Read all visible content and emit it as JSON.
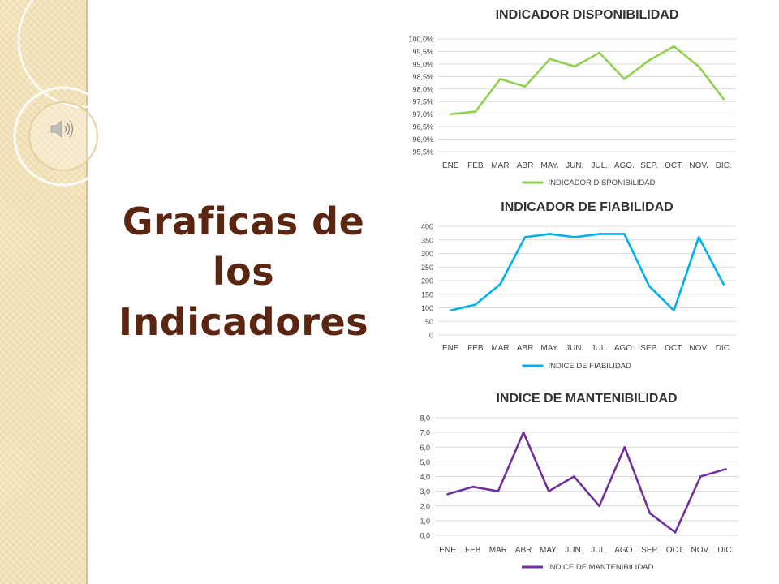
{
  "slide": {
    "title_lines": [
      "Graficas de",
      "los",
      "Indicadores"
    ],
    "colors": {
      "title": "#5a2612",
      "strip": "#f3e2b8"
    }
  },
  "icons": {
    "speaker": "speaker-icon"
  },
  "chart_data": [
    {
      "type": "line",
      "title": "INDICADOR DISPONIBILIDAD",
      "categories": [
        "ENE",
        "FEB",
        "MAR",
        "ABR",
        "MAY.",
        "JUN.",
        "JUL.",
        "AGO.",
        "SEP.",
        "OCT.",
        "NOV.",
        "DIC."
      ],
      "series": [
        {
          "name": "INDICADOR DISPONIBILIDAD",
          "color": "#92d050",
          "values": [
            97.0,
            97.1,
            98.4,
            98.1,
            99.2,
            98.9,
            99.45,
            98.4,
            99.15,
            99.7,
            98.9,
            97.6
          ]
        }
      ],
      "ylim": [
        95.5,
        100.0
      ],
      "yticks": [
        "95,5%",
        "96,0%",
        "96,5%",
        "97,0%",
        "97,5%",
        "98,0%",
        "98,5%",
        "99,0%",
        "99,5%",
        "100,0%"
      ],
      "legend": "bottom"
    },
    {
      "type": "line",
      "title": "INDICADOR DE FIABILIDAD",
      "categories": [
        "ENE",
        "FEB",
        "MAR",
        "ABR",
        "MAY.",
        "JUN.",
        "JUL.",
        "AGO.",
        "SEP.",
        "OCT.",
        "NOV.",
        "DIC."
      ],
      "series": [
        {
          "name": "INDICE DE FIABILIDAD",
          "color": "#00b0f0",
          "values": [
            90,
            112,
            187,
            360,
            372,
            360,
            372,
            372,
            180,
            90,
            360,
            187
          ]
        }
      ],
      "ylim": [
        0,
        400
      ],
      "yticks": [
        "0",
        "50",
        "100",
        "150",
        "200",
        "250",
        "300",
        "350",
        "400"
      ],
      "legend": "bottom"
    },
    {
      "type": "line",
      "title": "INDICE DE MANTENIBILIDAD",
      "categories": [
        "ENE",
        "FEB",
        "MAR",
        "ABR",
        "MAY.",
        "JUN.",
        "JUL.",
        "AGO.",
        "SEP.",
        "OCT.",
        "NOV.",
        "DIC."
      ],
      "series": [
        {
          "name": "INDICE DE MANTENIBILIDAD",
          "color": "#7030a0",
          "values": [
            2.8,
            3.3,
            3.0,
            7.0,
            3.0,
            4.0,
            2.0,
            6.0,
            1.5,
            0.2,
            4.0,
            4.5
          ]
        }
      ],
      "ylim": [
        0,
        8
      ],
      "yticks": [
        "0,0",
        "1,0",
        "2,0",
        "3,0",
        "4,0",
        "5,0",
        "6,0",
        "7,0",
        "8,0"
      ],
      "legend": "bottom"
    }
  ]
}
